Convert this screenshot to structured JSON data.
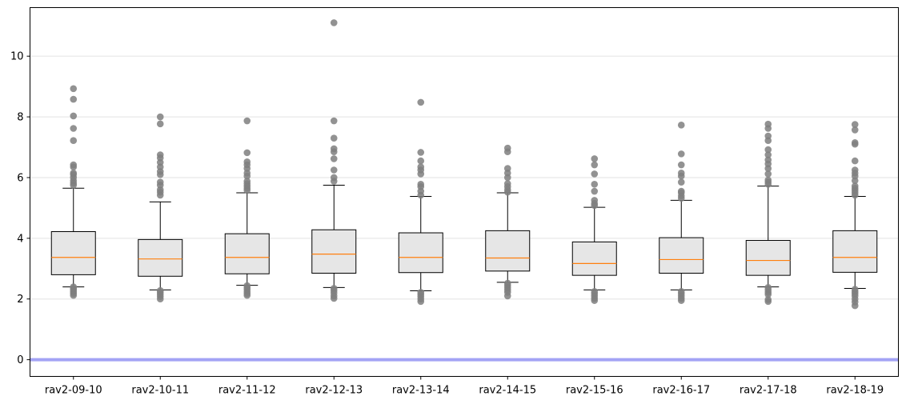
{
  "chart_data": {
    "type": "box",
    "title": "",
    "xlabel": "",
    "ylabel": "",
    "ylim": [
      -0.55,
      11.6
    ],
    "yticks": [
      0,
      2,
      4,
      6,
      8,
      10
    ],
    "ytick_labels": [
      "0",
      "2",
      "4",
      "6",
      "8",
      "10"
    ],
    "grid": "horizontal",
    "reference_line": {
      "y": 0,
      "color": "#a3a3f5"
    },
    "colors": {
      "box_fill": "#e6e6e6",
      "box_edge": "#000000",
      "median": "#ff7f0e",
      "outlier": "#7f7f7f",
      "grid": "#ececec"
    },
    "categories": [
      "rav2-09-10",
      "rav2-10-11",
      "rav2-11-12",
      "rav2-12-13",
      "rav2-13-14",
      "rav2-14-15",
      "rav2-15-16",
      "rav2-16-17",
      "rav2-17-18",
      "rav2-18-19"
    ],
    "boxes": [
      {
        "whisker_low": 2.4,
        "q1": 2.8,
        "median": 3.37,
        "q3": 4.22,
        "whisker_high": 5.65,
        "outliers": [
          2.12,
          2.18,
          2.24,
          2.3,
          2.35,
          2.4,
          5.75,
          5.82,
          5.9,
          6.0,
          6.1,
          6.15,
          6.35,
          6.42,
          7.22,
          7.62,
          8.03,
          8.58,
          8.93
        ]
      },
      {
        "whisker_low": 2.3,
        "q1": 2.75,
        "median": 3.32,
        "q3": 3.96,
        "whisker_high": 5.2,
        "outliers": [
          2.0,
          2.08,
          2.15,
          2.22,
          2.28,
          5.42,
          5.52,
          5.6,
          5.75,
          5.85,
          6.1,
          6.2,
          6.35,
          6.5,
          6.65,
          6.75,
          7.77,
          8.0
        ]
      },
      {
        "whisker_low": 2.45,
        "q1": 2.83,
        "median": 3.37,
        "q3": 4.15,
        "whisker_high": 5.5,
        "outliers": [
          2.12,
          2.18,
          2.25,
          2.32,
          2.38,
          2.44,
          5.58,
          5.65,
          5.72,
          5.8,
          5.88,
          6.05,
          6.15,
          6.3,
          6.42,
          6.52,
          6.82,
          7.87
        ]
      },
      {
        "whisker_low": 2.38,
        "q1": 2.85,
        "median": 3.48,
        "q3": 4.28,
        "whisker_high": 5.75,
        "outliers": [
          2.02,
          2.1,
          2.2,
          2.28,
          2.35,
          5.88,
          6.0,
          6.25,
          6.62,
          6.85,
          6.95,
          7.3,
          7.87,
          11.1
        ]
      },
      {
        "whisker_low": 2.27,
        "q1": 2.87,
        "median": 3.37,
        "q3": 4.18,
        "whisker_high": 5.38,
        "outliers": [
          1.92,
          2.0,
          2.08,
          2.15,
          2.22,
          5.42,
          5.55,
          5.7,
          5.78,
          6.12,
          6.25,
          6.35,
          6.55,
          6.83,
          8.48
        ]
      },
      {
        "whisker_low": 2.55,
        "q1": 2.92,
        "median": 3.35,
        "q3": 4.25,
        "whisker_high": 5.5,
        "outliers": [
          2.1,
          2.22,
          2.3,
          2.38,
          2.45,
          2.52,
          5.52,
          5.6,
          5.7,
          5.8,
          6.0,
          6.15,
          6.3,
          6.85,
          6.97
        ]
      },
      {
        "whisker_low": 2.3,
        "q1": 2.78,
        "median": 3.17,
        "q3": 3.88,
        "whisker_high": 5.02,
        "outliers": [
          1.95,
          2.02,
          2.1,
          2.18,
          2.25,
          5.08,
          5.15,
          5.25,
          5.55,
          5.78,
          6.12,
          6.42,
          6.62
        ]
      },
      {
        "whisker_low": 2.3,
        "q1": 2.85,
        "median": 3.3,
        "q3": 4.02,
        "whisker_high": 5.25,
        "outliers": [
          1.95,
          2.02,
          2.1,
          2.18,
          2.25,
          5.32,
          5.4,
          5.5,
          5.55,
          5.85,
          6.05,
          6.15,
          6.42,
          6.78,
          7.73
        ]
      },
      {
        "whisker_low": 2.4,
        "q1": 2.78,
        "median": 3.27,
        "q3": 3.93,
        "whisker_high": 5.72,
        "outliers": [
          1.92,
          1.98,
          2.15,
          2.22,
          2.3,
          2.38,
          5.78,
          5.85,
          5.92,
          6.12,
          6.3,
          6.45,
          6.58,
          6.75,
          6.92,
          7.22,
          7.37,
          7.62,
          7.76
        ]
      },
      {
        "whisker_low": 2.35,
        "q1": 2.88,
        "median": 3.37,
        "q3": 4.25,
        "whisker_high": 5.38,
        "outliers": [
          1.78,
          1.9,
          2.0,
          2.1,
          2.18,
          2.25,
          2.32,
          5.42,
          5.5,
          5.58,
          5.65,
          5.72,
          5.9,
          6.05,
          6.15,
          6.25,
          6.55,
          7.1,
          7.15,
          7.57,
          7.75
        ]
      }
    ]
  }
}
